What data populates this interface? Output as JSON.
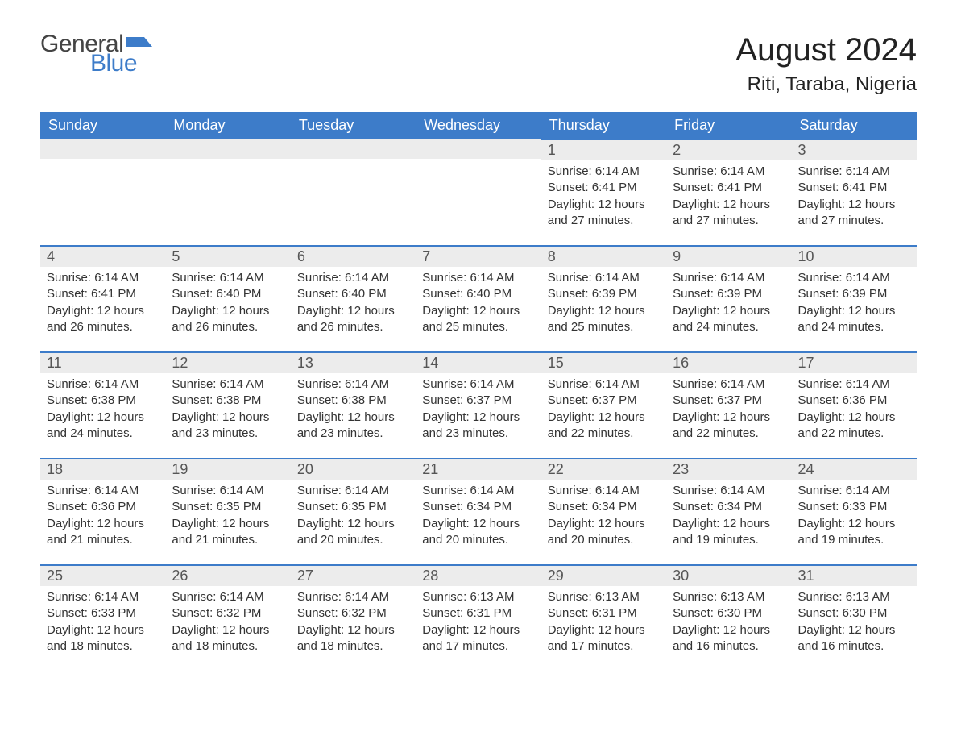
{
  "logo": {
    "text1": "General",
    "text2": "Blue",
    "color_general": "#444444",
    "color_blue": "#3d7cc9"
  },
  "title": "August 2024",
  "location": "Riti, Taraba, Nigeria",
  "colors": {
    "header_bg": "#3d7cc9",
    "header_text": "#ffffff",
    "daynum_bg": "#ececec",
    "daynum_text": "#555555",
    "border": "#3d7cc9",
    "body_text": "#333333"
  },
  "weekdays": [
    "Sunday",
    "Monday",
    "Tuesday",
    "Wednesday",
    "Thursday",
    "Friday",
    "Saturday"
  ],
  "weeks": [
    [
      null,
      null,
      null,
      null,
      {
        "n": "1",
        "sr": "6:14 AM",
        "ss": "6:41 PM",
        "dl": "12 hours and 27 minutes."
      },
      {
        "n": "2",
        "sr": "6:14 AM",
        "ss": "6:41 PM",
        "dl": "12 hours and 27 minutes."
      },
      {
        "n": "3",
        "sr": "6:14 AM",
        "ss": "6:41 PM",
        "dl": "12 hours and 27 minutes."
      }
    ],
    [
      {
        "n": "4",
        "sr": "6:14 AM",
        "ss": "6:41 PM",
        "dl": "12 hours and 26 minutes."
      },
      {
        "n": "5",
        "sr": "6:14 AM",
        "ss": "6:40 PM",
        "dl": "12 hours and 26 minutes."
      },
      {
        "n": "6",
        "sr": "6:14 AM",
        "ss": "6:40 PM",
        "dl": "12 hours and 26 minutes."
      },
      {
        "n": "7",
        "sr": "6:14 AM",
        "ss": "6:40 PM",
        "dl": "12 hours and 25 minutes."
      },
      {
        "n": "8",
        "sr": "6:14 AM",
        "ss": "6:39 PM",
        "dl": "12 hours and 25 minutes."
      },
      {
        "n": "9",
        "sr": "6:14 AM",
        "ss": "6:39 PM",
        "dl": "12 hours and 24 minutes."
      },
      {
        "n": "10",
        "sr": "6:14 AM",
        "ss": "6:39 PM",
        "dl": "12 hours and 24 minutes."
      }
    ],
    [
      {
        "n": "11",
        "sr": "6:14 AM",
        "ss": "6:38 PM",
        "dl": "12 hours and 24 minutes."
      },
      {
        "n": "12",
        "sr": "6:14 AM",
        "ss": "6:38 PM",
        "dl": "12 hours and 23 minutes."
      },
      {
        "n": "13",
        "sr": "6:14 AM",
        "ss": "6:38 PM",
        "dl": "12 hours and 23 minutes."
      },
      {
        "n": "14",
        "sr": "6:14 AM",
        "ss": "6:37 PM",
        "dl": "12 hours and 23 minutes."
      },
      {
        "n": "15",
        "sr": "6:14 AM",
        "ss": "6:37 PM",
        "dl": "12 hours and 22 minutes."
      },
      {
        "n": "16",
        "sr": "6:14 AM",
        "ss": "6:37 PM",
        "dl": "12 hours and 22 minutes."
      },
      {
        "n": "17",
        "sr": "6:14 AM",
        "ss": "6:36 PM",
        "dl": "12 hours and 22 minutes."
      }
    ],
    [
      {
        "n": "18",
        "sr": "6:14 AM",
        "ss": "6:36 PM",
        "dl": "12 hours and 21 minutes."
      },
      {
        "n": "19",
        "sr": "6:14 AM",
        "ss": "6:35 PM",
        "dl": "12 hours and 21 minutes."
      },
      {
        "n": "20",
        "sr": "6:14 AM",
        "ss": "6:35 PM",
        "dl": "12 hours and 20 minutes."
      },
      {
        "n": "21",
        "sr": "6:14 AM",
        "ss": "6:34 PM",
        "dl": "12 hours and 20 minutes."
      },
      {
        "n": "22",
        "sr": "6:14 AM",
        "ss": "6:34 PM",
        "dl": "12 hours and 20 minutes."
      },
      {
        "n": "23",
        "sr": "6:14 AM",
        "ss": "6:34 PM",
        "dl": "12 hours and 19 minutes."
      },
      {
        "n": "24",
        "sr": "6:14 AM",
        "ss": "6:33 PM",
        "dl": "12 hours and 19 minutes."
      }
    ],
    [
      {
        "n": "25",
        "sr": "6:14 AM",
        "ss": "6:33 PM",
        "dl": "12 hours and 18 minutes."
      },
      {
        "n": "26",
        "sr": "6:14 AM",
        "ss": "6:32 PM",
        "dl": "12 hours and 18 minutes."
      },
      {
        "n": "27",
        "sr": "6:14 AM",
        "ss": "6:32 PM",
        "dl": "12 hours and 18 minutes."
      },
      {
        "n": "28",
        "sr": "6:13 AM",
        "ss": "6:31 PM",
        "dl": "12 hours and 17 minutes."
      },
      {
        "n": "29",
        "sr": "6:13 AM",
        "ss": "6:31 PM",
        "dl": "12 hours and 17 minutes."
      },
      {
        "n": "30",
        "sr": "6:13 AM",
        "ss": "6:30 PM",
        "dl": "12 hours and 16 minutes."
      },
      {
        "n": "31",
        "sr": "6:13 AM",
        "ss": "6:30 PM",
        "dl": "12 hours and 16 minutes."
      }
    ]
  ],
  "labels": {
    "sunrise": "Sunrise:",
    "sunset": "Sunset:",
    "daylight": "Daylight:"
  }
}
